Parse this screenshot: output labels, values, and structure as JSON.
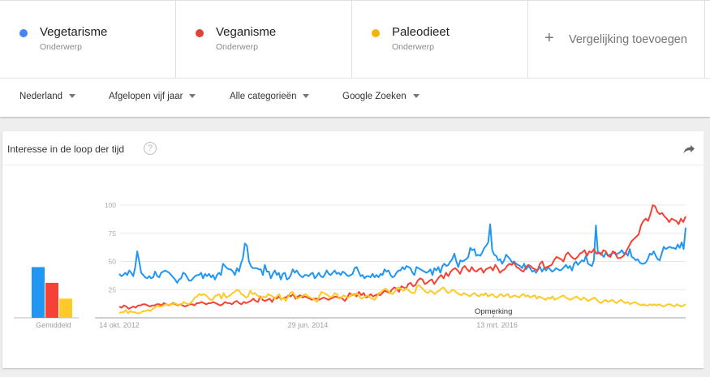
{
  "terms": [
    {
      "label": "Vegetarisme",
      "type": "Onderwerp",
      "color": "#4285f4"
    },
    {
      "label": "Veganisme",
      "type": "Onderwerp",
      "color": "#db4437"
    },
    {
      "label": "Paleodieet",
      "type": "Onderwerp",
      "color": "#f4b400"
    }
  ],
  "add_comparison": {
    "icon": "+",
    "label": "Vergelijking toevoegen"
  },
  "filters": [
    {
      "label": "Nederland"
    },
    {
      "label": "Afgelopen vijf jaar"
    },
    {
      "label": "Alle categorieën"
    },
    {
      "label": "Google Zoeken"
    }
  ],
  "card": {
    "title": "Interesse in de loop der tijd",
    "help_icon": "?",
    "average_label": "Gemiddeld",
    "annotation": "Opmerking"
  },
  "chart_data": [
    {
      "type": "bar",
      "title": "Gemiddeld",
      "categories": [
        "Vegetarisme",
        "Veganisme",
        "Paleodieet"
      ],
      "values": [
        45,
        31,
        17
      ],
      "colors": [
        "#2196f3",
        "#f44336",
        "#ffca28"
      ],
      "ylim": [
        0,
        100
      ]
    },
    {
      "type": "line",
      "title": "Interesse in de loop der tijd",
      "xlabel": "",
      "ylabel": "",
      "ylim": [
        0,
        100
      ],
      "yticks": [
        25,
        50,
        75,
        100
      ],
      "xtick_labels": [
        "14 okt. 2012",
        "29 jun. 2014",
        "13 mrt. 2016"
      ],
      "xtick_positions": [
        0,
        0.333,
        0.667
      ],
      "grid": true,
      "annotations": [
        {
          "label": "Opmerking",
          "position": 0.675
        }
      ],
      "series": [
        {
          "name": "Vegetarisme",
          "color": "#2196f3",
          "values": [
            39,
            37,
            38,
            40,
            38,
            42,
            40,
            37,
            45,
            59,
            50,
            40,
            38,
            36,
            35,
            37,
            35,
            36,
            41,
            37,
            36,
            40,
            41,
            42,
            41,
            40,
            38,
            36,
            34,
            31,
            34,
            35,
            40,
            39,
            36,
            33,
            33,
            35,
            37,
            38,
            38,
            40,
            35,
            39,
            37,
            39,
            36,
            38,
            34,
            38,
            40,
            38,
            48,
            46,
            44,
            43,
            43,
            41,
            38,
            44,
            41,
            48,
            53,
            66,
            64,
            50,
            46,
            44,
            44,
            44,
            43,
            43,
            38,
            47,
            41,
            41,
            35,
            39,
            42,
            38,
            40,
            34,
            39,
            40,
            34,
            35,
            38,
            43,
            40,
            42,
            39,
            37,
            36,
            38,
            38,
            37,
            39,
            40,
            35,
            37,
            40,
            37,
            36,
            38,
            42,
            39,
            38,
            40,
            42,
            39,
            40,
            38,
            41,
            40,
            38,
            37,
            38,
            39,
            44,
            45,
            41,
            37,
            38,
            35,
            37,
            37,
            36,
            39,
            36,
            38,
            36,
            39,
            38,
            43,
            41,
            42,
            38,
            36,
            37,
            40,
            42,
            42,
            45,
            43,
            46,
            45,
            44,
            40,
            38,
            45,
            44,
            43,
            42,
            41,
            40,
            41,
            43,
            38,
            44,
            42,
            45,
            40,
            46,
            48,
            46,
            47,
            50,
            52,
            57,
            50,
            45,
            51,
            50,
            51,
            52,
            54,
            62,
            60,
            61,
            55,
            56,
            55,
            58,
            62,
            64,
            67,
            83,
            60,
            56,
            55,
            51,
            52,
            48,
            51,
            56,
            54,
            52,
            49,
            50,
            48,
            47,
            46,
            44,
            48,
            43,
            46,
            44,
            41,
            42,
            40,
            43,
            45,
            41,
            44,
            42,
            45,
            43,
            41,
            42,
            44,
            43,
            42,
            43,
            45,
            47,
            44,
            46,
            42,
            48,
            50,
            47,
            49,
            51,
            50,
            55,
            48,
            47,
            46,
            51,
            82,
            57,
            58,
            56,
            54,
            58,
            55,
            56,
            57,
            58,
            56,
            57,
            58,
            60,
            57,
            58,
            55,
            61,
            54,
            53,
            51,
            52,
            49,
            48,
            48,
            49,
            52,
            57,
            56,
            59,
            55,
            52,
            51,
            57,
            63,
            61,
            62,
            63,
            62,
            62,
            61,
            65,
            62,
            67,
            61,
            80
          ]
        },
        {
          "name": "Veganisme",
          "color": "#f44336",
          "values": [
            10,
            9,
            11,
            10,
            8,
            9,
            10,
            9,
            11,
            11,
            12,
            12,
            11,
            10,
            11,
            11,
            12,
            12,
            11,
            13,
            12,
            11,
            12,
            13,
            12,
            11,
            12,
            11,
            10,
            11,
            12,
            12,
            11,
            13,
            13,
            14,
            13,
            12,
            13,
            13,
            14,
            13,
            12,
            11,
            12,
            14,
            13,
            13,
            12,
            14,
            15,
            13,
            12,
            14,
            13,
            14,
            15,
            17,
            15,
            14,
            19,
            16,
            15,
            16,
            17,
            14,
            18,
            17,
            19,
            16,
            18,
            18,
            20,
            19,
            21,
            17,
            19,
            20,
            18,
            19,
            18,
            17,
            16,
            17,
            17,
            16,
            17,
            18,
            17,
            16,
            17,
            18,
            19,
            18,
            18,
            17,
            15,
            18,
            22,
            20,
            21,
            19,
            23,
            20,
            22,
            18,
            19,
            21,
            19,
            20,
            21,
            20,
            22,
            24,
            23,
            22,
            25,
            27,
            26,
            23,
            28,
            27,
            26,
            30,
            31,
            28,
            29,
            33,
            35,
            34,
            30,
            31,
            33,
            34,
            30,
            33,
            36,
            38,
            35,
            40,
            37,
            41,
            43,
            44,
            42,
            39,
            44,
            46,
            43,
            41,
            45,
            42,
            41,
            43,
            44,
            40,
            43,
            44,
            45,
            42,
            47,
            44,
            40,
            42,
            43,
            46,
            48,
            47,
            49,
            45,
            44,
            42,
            41,
            45,
            47,
            46,
            44,
            43,
            42,
            48,
            50,
            44,
            45,
            46,
            47,
            51,
            54,
            53,
            52,
            50,
            56,
            58,
            55,
            53,
            52,
            54,
            57,
            58,
            60,
            55,
            59,
            58,
            61,
            57,
            58,
            56,
            60,
            59,
            55,
            54,
            59,
            58,
            53,
            53,
            54,
            56,
            60,
            64,
            68,
            70,
            72,
            74,
            82,
            86,
            88,
            86,
            92,
            100,
            99,
            94,
            92,
            93,
            90,
            88,
            85,
            88,
            87,
            86,
            83,
            88,
            85,
            90
          ]
        },
        {
          "name": "Paleodieet",
          "color": "#ffca28",
          "values": [
            4,
            5,
            5,
            7,
            4,
            6,
            5,
            5,
            4,
            4,
            5,
            6,
            6,
            7,
            6,
            8,
            9,
            11,
            10,
            10,
            11,
            12,
            11,
            12,
            12,
            13,
            12,
            11,
            12,
            14,
            13,
            12,
            13,
            15,
            18,
            19,
            21,
            20,
            21,
            20,
            18,
            16,
            16,
            19,
            20,
            21,
            17,
            22,
            18,
            19,
            20,
            22,
            23,
            25,
            24,
            21,
            20,
            18,
            19,
            24,
            21,
            22,
            20,
            19,
            17,
            19,
            18,
            21,
            20,
            19,
            17,
            19,
            21,
            16,
            18,
            15,
            19,
            22,
            23,
            20,
            17,
            18,
            19,
            20,
            21,
            19,
            18,
            17,
            16,
            14,
            19,
            23,
            22,
            21,
            20,
            18,
            19,
            22,
            21,
            17,
            18,
            20,
            19,
            18,
            19,
            21,
            20,
            22,
            19,
            17,
            18,
            19,
            20,
            18,
            17,
            16,
            19,
            22,
            23,
            25,
            26,
            24,
            22,
            21,
            23,
            26,
            27,
            25,
            24,
            26,
            25,
            23,
            22,
            22,
            28,
            29,
            27,
            25,
            23,
            22,
            24,
            23,
            21,
            23,
            24,
            26,
            27,
            24,
            22,
            23,
            25,
            24,
            22,
            21,
            20,
            22,
            21,
            20,
            19,
            21,
            22,
            20,
            19,
            21,
            20,
            22,
            19,
            20,
            21,
            19,
            18,
            20,
            21,
            19,
            20,
            21,
            18,
            19,
            20,
            19,
            18,
            20,
            21,
            19,
            20,
            18,
            19,
            20,
            17,
            19,
            18,
            17,
            16,
            18,
            17,
            19,
            16,
            17,
            18,
            19,
            20,
            18,
            17,
            16,
            17,
            18,
            19,
            17,
            16,
            18,
            17,
            15,
            16,
            17,
            18,
            16,
            14,
            13,
            15,
            16,
            14,
            15,
            16,
            14,
            13,
            15,
            16,
            14,
            13,
            14,
            12,
            13,
            14,
            13,
            12,
            11,
            12,
            11,
            11,
            12,
            11,
            12,
            11,
            12,
            11,
            10,
            11,
            12,
            12,
            11,
            10,
            12,
            11,
            10,
            11,
            12
          ]
        }
      ]
    }
  ]
}
